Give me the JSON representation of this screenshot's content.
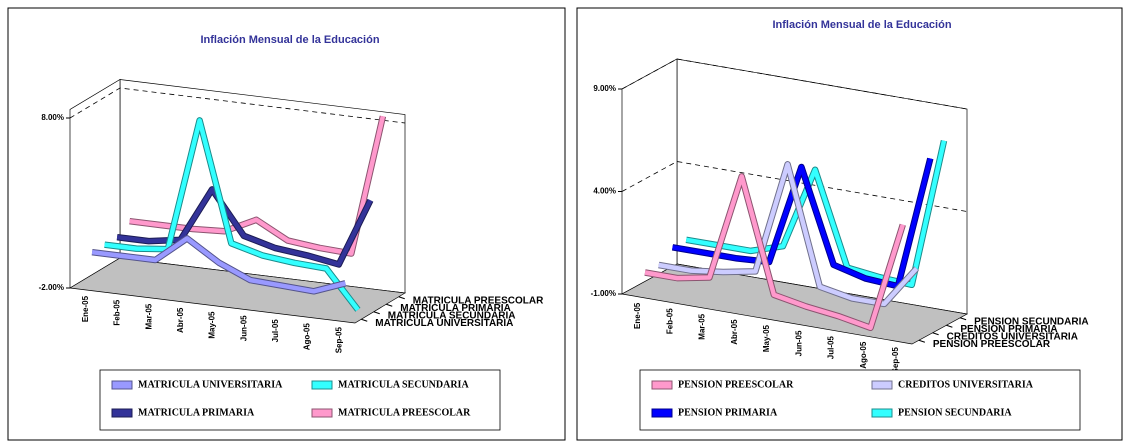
{
  "chart_data": [
    {
      "type": "line",
      "title": "Inflación Mensual de la Educación",
      "categories": [
        "Ene-05",
        "Feb-05",
        "Mar-05",
        "Abr-05",
        "May-05",
        "Jun-05",
        "Jul-05",
        "Ago-05",
        "Sep-05"
      ],
      "ylim": [
        -2,
        8.5
      ],
      "yticks": [
        {
          "value": -2,
          "label": "-2.00%"
        },
        {
          "value": 8,
          "label": "8.00%"
        }
      ],
      "grid": true,
      "series": [
        {
          "name": "MATRICULA UNIVERSITARIA",
          "color": "#9999ff",
          "values": [
            0,
            0,
            0,
            1.5,
            0.3,
            -0.5,
            -0.6,
            -0.7,
            0
          ]
        },
        {
          "name": "MATRICULA SECUNDARIA",
          "color": "#33ffff",
          "values": [
            0,
            0,
            0.2,
            8,
            1,
            0.5,
            0.3,
            0.2,
            -2
          ]
        },
        {
          "name": "MATRICULA PRIMARIA",
          "color": "#333399",
          "values": [
            0,
            0,
            0.3,
            3.5,
            1,
            0.5,
            0.3,
            0,
            4
          ]
        },
        {
          "name": "MATRICULA PREESCOLAR",
          "color": "#ff99cc",
          "values": [
            0.5,
            0.5,
            0.5,
            0.6,
            1.5,
            0.5,
            0.3,
            0.2,
            8.5
          ]
        }
      ]
    },
    {
      "type": "line",
      "title": "Inflación Mensual de la Educación",
      "categories": [
        "Ene-05",
        "Feb-05",
        "Mar-05",
        "Abr-05",
        "May-05",
        "Jun-05",
        "Jul-05",
        "Ago-05",
        "Sep-05"
      ],
      "ylim": [
        -1,
        9
      ],
      "yticks": [
        {
          "value": -1,
          "label": "-1.00%"
        },
        {
          "value": 4,
          "label": "4.00%"
        },
        {
          "value": 9,
          "label": "9.00%"
        }
      ],
      "grid": true,
      "series": [
        {
          "name": "PENSION PREESCOLAR",
          "color": "#ff99cc",
          "values": [
            0,
            0,
            0.3,
            5.5,
            0,
            -0.3,
            -0.5,
            -0.8,
            4.5
          ]
        },
        {
          "name": "CREDITOS UNIVERSITARIA",
          "color": "#ccccff",
          "values": [
            0,
            0,
            0.2,
            0.5,
            6,
            0.3,
            0,
            0,
            2
          ]
        },
        {
          "name": "PENSION PRIMARIA",
          "color": "#0000ff",
          "values": [
            0.5,
            0.5,
            0.5,
            0.6,
            5.5,
            1,
            0.6,
            0.5,
            7
          ]
        },
        {
          "name": "PENSION SECUNDARIA",
          "color": "#33ffff",
          "values": [
            0.5,
            0.5,
            0.5,
            1,
            5,
            0.5,
            0.3,
            0.2,
            7.5
          ]
        }
      ]
    }
  ]
}
